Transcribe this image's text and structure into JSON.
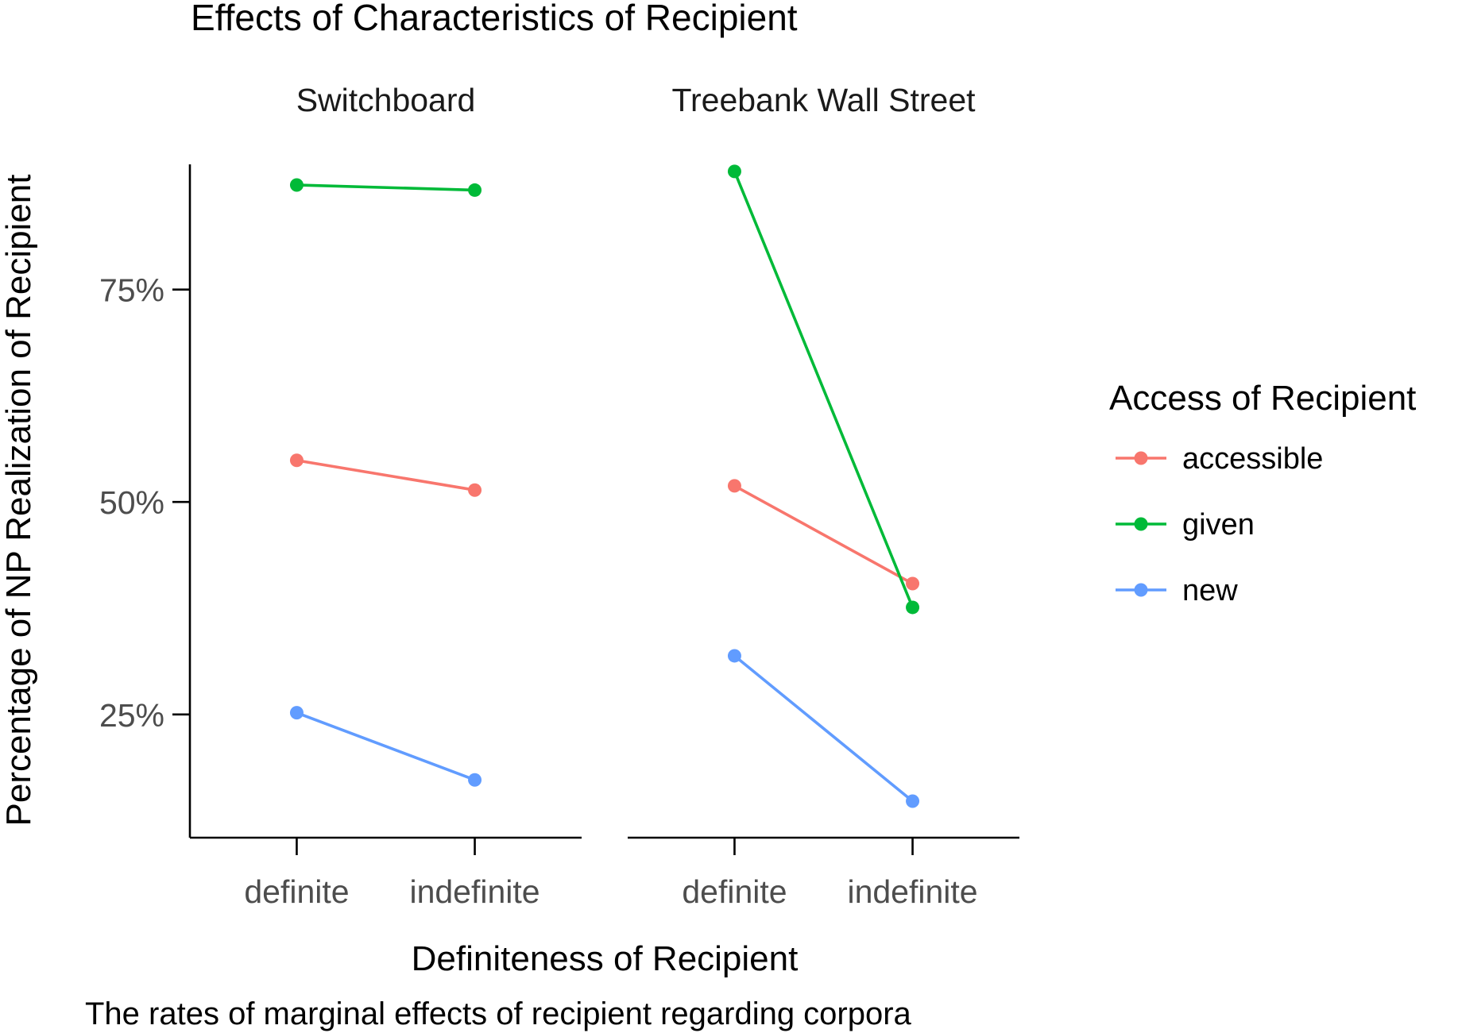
{
  "chart_data": {
    "type": "line",
    "title": "Effects of Characteristics of Recipient",
    "xlabel": "Definiteness of Recipient",
    "ylabel": "Percentage of NP Realization of Recipient",
    "caption": "The rates of marginal effects of recipient regarding corpora",
    "categories": [
      "definite",
      "indefinite"
    ],
    "ylim": [
      0.105,
      0.93
    ],
    "yticks": [
      {
        "value": 0.25,
        "label": "25%"
      },
      {
        "value": 0.5,
        "label": "50%"
      },
      {
        "value": 0.75,
        "label": "75%"
      }
    ],
    "grid": false,
    "legend": {
      "title": "Access of Recipient",
      "position": "right",
      "entries": [
        "accessible",
        "given",
        "new"
      ]
    },
    "colors": {
      "accessible": "#F8766D",
      "given": "#00BA38",
      "new": "#619CFF"
    },
    "panels": [
      {
        "name": "Switchboard",
        "series": [
          {
            "name": "accessible",
            "values": [
              0.549,
              0.514
            ]
          },
          {
            "name": "given",
            "values": [
              0.873,
              0.867
            ]
          },
          {
            "name": "new",
            "values": [
              0.252,
              0.173
            ]
          }
        ]
      },
      {
        "name": "Treebank Wall Street",
        "series": [
          {
            "name": "accessible",
            "values": [
              0.519,
              0.404
            ]
          },
          {
            "name": "given",
            "values": [
              0.889,
              0.376
            ]
          },
          {
            "name": "new",
            "values": [
              0.319,
              0.148
            ]
          }
        ]
      }
    ]
  }
}
